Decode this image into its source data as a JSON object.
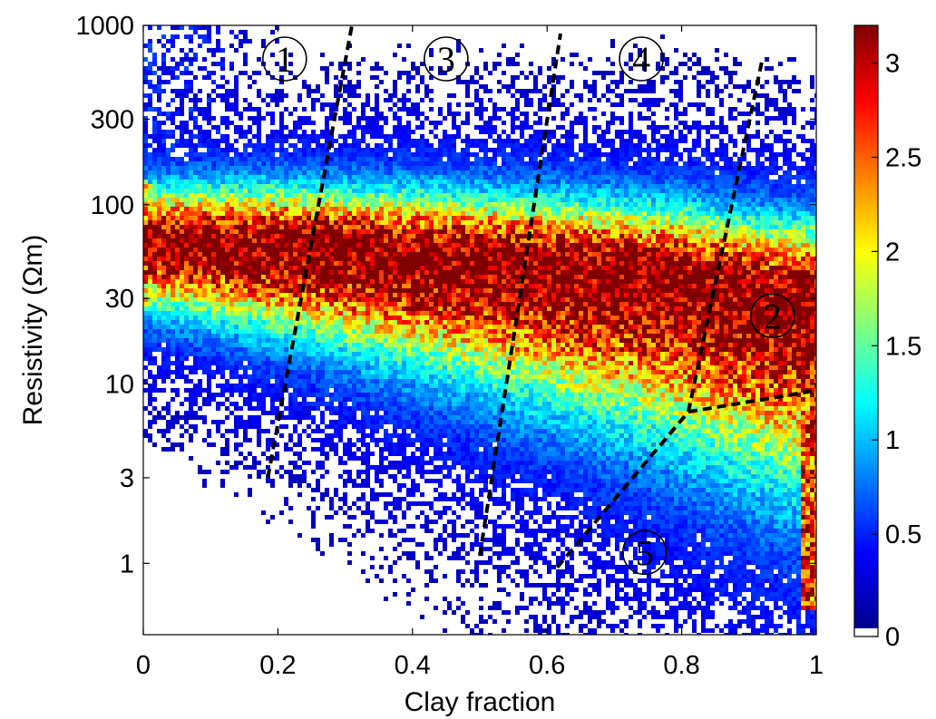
{
  "chart_data": {
    "type": "heatmap",
    "xlabel": "Clay fraction",
    "ylabel": "Resistivity (Ωm)",
    "xlim": [
      0,
      1
    ],
    "ylim": [
      0.4,
      1000
    ],
    "y_scale": "log",
    "x_ticks": [
      0,
      0.2,
      0.4,
      0.6,
      0.8,
      1
    ],
    "x_tick_labels": [
      "0",
      "0.2",
      "0.4",
      "0.6",
      "0.8",
      "1"
    ],
    "y_ticks": [
      1,
      3,
      10,
      30,
      100,
      300,
      1000
    ],
    "y_tick_labels": [
      "1",
      "3",
      "10",
      "30",
      "100",
      "300",
      "1000"
    ],
    "colorbar": {
      "colormap": "jet",
      "range": [
        0,
        3.2
      ],
      "ticks": [
        0,
        0.5,
        1,
        1.5,
        2,
        2.5,
        3
      ],
      "tick_labels": [
        "0",
        "0.5",
        "1",
        "1.5",
        "2",
        "2.5",
        "3"
      ],
      "zero_color": "#ffffff"
    },
    "density_ridge": [
      {
        "x": 0.0,
        "y": 60
      },
      {
        "x": 0.2,
        "y": 58
      },
      {
        "x": 0.4,
        "y": 52
      },
      {
        "x": 0.6,
        "y": 45
      },
      {
        "x": 0.8,
        "y": 38
      },
      {
        "x": 0.95,
        "y": 30
      }
    ],
    "dividers": [
      {
        "points": [
          [
            0.185,
            3.0
          ],
          [
            0.31,
            1000
          ]
        ]
      },
      {
        "points": [
          [
            0.5,
            1.1
          ],
          [
            0.62,
            900
          ]
        ]
      },
      {
        "points": [
          [
            0.615,
            0.95
          ],
          [
            0.81,
            7.0
          ],
          [
            0.92,
            650
          ]
        ]
      },
      {
        "points": [
          [
            0.81,
            7.0
          ],
          [
            1.0,
            9.2
          ]
        ]
      }
    ],
    "zone_labels": [
      {
        "text": "1",
        "x": 0.21,
        "y": 650
      },
      {
        "text": "3",
        "x": 0.45,
        "y": 650
      },
      {
        "text": "4",
        "x": 0.74,
        "y": 650
      },
      {
        "text": "2",
        "x": 0.935,
        "y": 24
      },
      {
        "text": "5",
        "x": 0.745,
        "y": 1.15
      }
    ]
  }
}
